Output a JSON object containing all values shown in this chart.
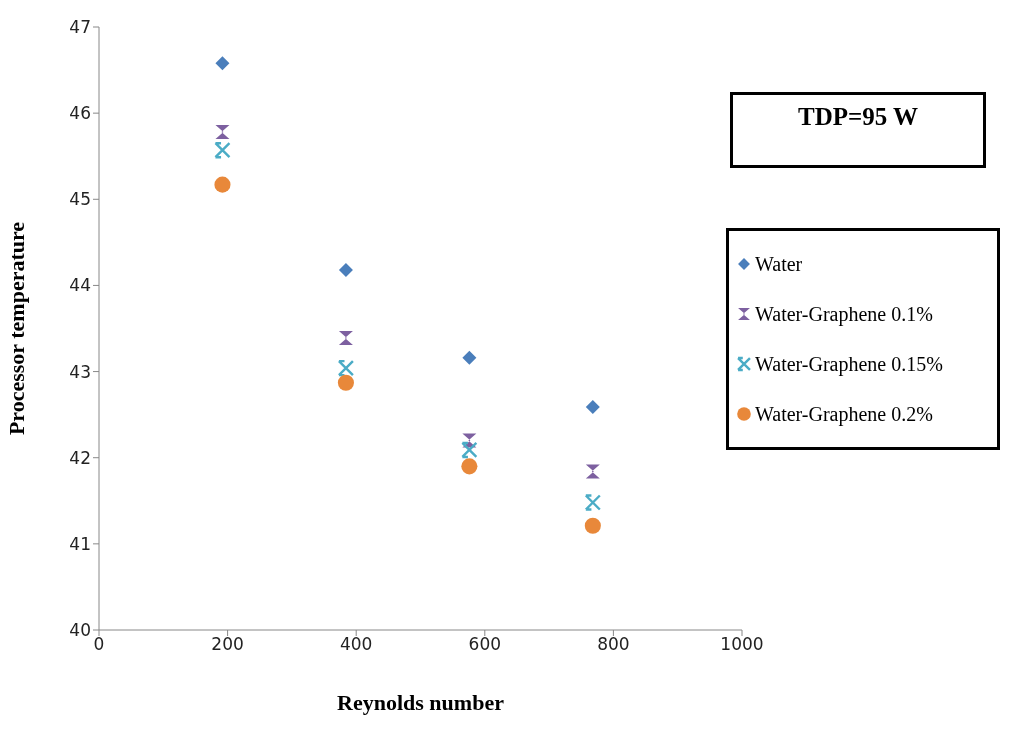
{
  "chart_data": {
    "type": "scatter",
    "xlabel": "Reynolds number",
    "ylabel": "Processor temperature",
    "annotations": [
      "TDP=95 W"
    ],
    "x": [
      192,
      384,
      576,
      768
    ],
    "xlim": [
      0,
      1000
    ],
    "xticks": [
      0,
      200,
      400,
      600,
      800,
      1000
    ],
    "ylim": [
      40,
      47
    ],
    "yticks": [
      40,
      41,
      42,
      43,
      44,
      45,
      46,
      47
    ],
    "grid": false,
    "legend": "right",
    "series": [
      {
        "name": "Water",
        "color": "#4a7ebb",
        "marker": "diamond",
        "values": [
          46.58,
          44.18,
          43.16,
          42.59
        ]
      },
      {
        "name": "Water-Graphene 0.1%",
        "color": "#7d60a0",
        "marker": "triangle",
        "values": [
          45.78,
          43.39,
          42.2,
          41.84
        ]
      },
      {
        "name": "Water-Graphene 0.15%",
        "color": "#4bacc6",
        "marker": "cross",
        "values": [
          45.57,
          43.04,
          42.09,
          41.48
        ]
      },
      {
        "name": "Water-Graphene 0.2%",
        "color": "#e8883a",
        "marker": "circle",
        "values": [
          45.17,
          42.87,
          41.9,
          41.21
        ]
      }
    ]
  }
}
